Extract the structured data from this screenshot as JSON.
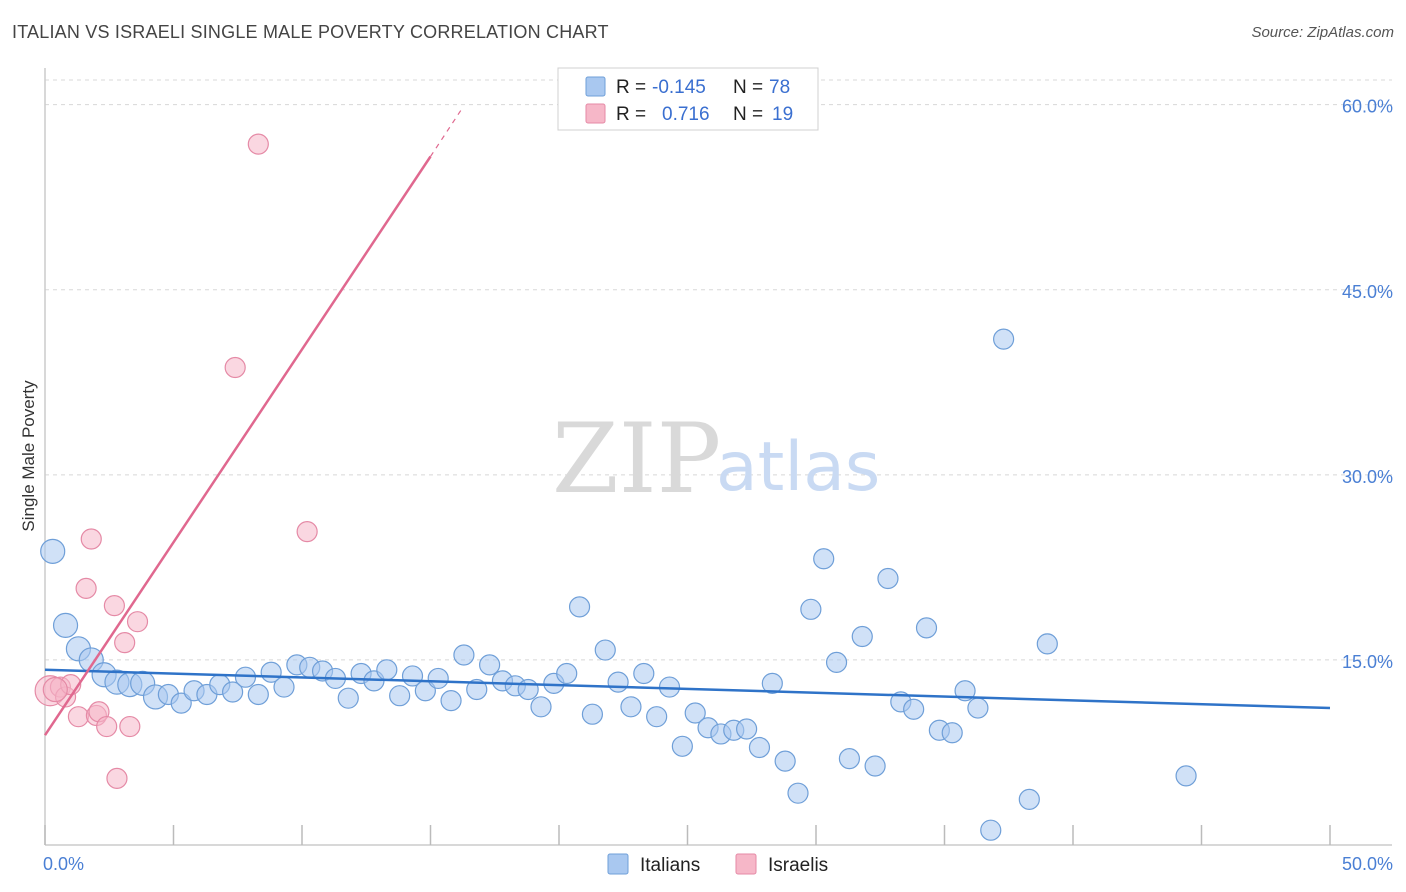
{
  "title": "ITALIAN VS ISRAELI SINGLE MALE POVERTY CORRELATION CHART",
  "source": "Source: ZipAtlas.com",
  "watermark": {
    "zip": "ZIP",
    "atlas": "atlas"
  },
  "colors": {
    "italians_fill": "#a9c8f0",
    "italians_stroke": "#6f9fd8",
    "italians_line": "#2f73c8",
    "israelis_fill": "#f6b7c8",
    "israelis_stroke": "#e58aa6",
    "israelis_line": "#e0688f",
    "tick_text": "#4a7fd4",
    "grid": "#d8d8d8"
  },
  "legend": {
    "rows": [
      {
        "r_label": "R =",
        "r_value": "-0.145",
        "n_label": "N =",
        "n_value": "78"
      },
      {
        "r_label": "R =",
        "r_value": "0.716",
        "n_label": "N =",
        "n_value": "19"
      }
    ]
  },
  "bottom_legend": [
    "Italians",
    "Israelis"
  ],
  "chart_data": {
    "type": "scatter",
    "title": "ITALIAN VS ISRAELI SINGLE MALE POVERTY CORRELATION CHART",
    "xlabel": "",
    "ylabel": "Single Male Poverty",
    "xlim": [
      0,
      50
    ],
    "ylim": [
      0,
      62
    ],
    "x_tick_labels": [
      "0.0%",
      "50.0%"
    ],
    "y_ticks": [
      15,
      30,
      45,
      60
    ],
    "y_tick_labels": [
      "15.0%",
      "30.0%",
      "45.0%",
      "60.0%"
    ],
    "grid": "horizontal dashed",
    "legend_placement": "top-center",
    "series": [
      {
        "name": "Italians",
        "r": -0.145,
        "n": 78,
        "trend": {
          "x": [
            0,
            50
          ],
          "y": [
            14.2,
            11.1
          ]
        },
        "points": [
          [
            0.3,
            23.8,
            1
          ],
          [
            0.8,
            17.8,
            1
          ],
          [
            1.3,
            15.9,
            1
          ],
          [
            1.8,
            15.0,
            1
          ],
          [
            2.3,
            13.8,
            1
          ],
          [
            2.8,
            13.2,
            1
          ],
          [
            3.3,
            13.0,
            1
          ],
          [
            3.8,
            13.1,
            1
          ],
          [
            4.3,
            12.0,
            1
          ],
          [
            4.8,
            12.2,
            0
          ],
          [
            5.3,
            11.5,
            0
          ],
          [
            5.8,
            12.5,
            0
          ],
          [
            6.3,
            12.2,
            0
          ],
          [
            6.8,
            13.0,
            0
          ],
          [
            7.3,
            12.4,
            0
          ],
          [
            7.8,
            13.6,
            0
          ],
          [
            8.3,
            12.2,
            0
          ],
          [
            8.8,
            14.0,
            0
          ],
          [
            9.3,
            12.8,
            0
          ],
          [
            9.8,
            14.6,
            0
          ],
          [
            10.3,
            14.4,
            0
          ],
          [
            10.8,
            14.1,
            0
          ],
          [
            11.3,
            13.5,
            0
          ],
          [
            11.8,
            11.9,
            0
          ],
          [
            12.3,
            13.9,
            0
          ],
          [
            12.8,
            13.3,
            0
          ],
          [
            13.3,
            14.2,
            0
          ],
          [
            13.8,
            12.1,
            0
          ],
          [
            14.3,
            13.7,
            0
          ],
          [
            14.8,
            12.5,
            0
          ],
          [
            15.3,
            13.5,
            0
          ],
          [
            15.8,
            11.7,
            0
          ],
          [
            16.3,
            15.4,
            0
          ],
          [
            16.8,
            12.6,
            0
          ],
          [
            17.3,
            14.6,
            0
          ],
          [
            17.8,
            13.3,
            0
          ],
          [
            18.3,
            12.9,
            0
          ],
          [
            18.8,
            12.6,
            0
          ],
          [
            19.3,
            11.2,
            0
          ],
          [
            19.8,
            13.1,
            0
          ],
          [
            20.3,
            13.9,
            0
          ],
          [
            20.8,
            19.3,
            0
          ],
          [
            21.3,
            10.6,
            0
          ],
          [
            21.8,
            15.8,
            0
          ],
          [
            22.3,
            13.2,
            0
          ],
          [
            22.8,
            11.2,
            0
          ],
          [
            23.3,
            13.9,
            0
          ],
          [
            23.8,
            10.4,
            0
          ],
          [
            24.3,
            12.8,
            0
          ],
          [
            24.8,
            8.0,
            0
          ],
          [
            25.3,
            10.7,
            0
          ],
          [
            25.8,
            9.5,
            0
          ],
          [
            26.3,
            9.0,
            0
          ],
          [
            26.8,
            9.3,
            0
          ],
          [
            27.3,
            9.4,
            0
          ],
          [
            27.8,
            7.9,
            0
          ],
          [
            28.3,
            13.1,
            0
          ],
          [
            28.8,
            6.8,
            0
          ],
          [
            29.3,
            4.2,
            0
          ],
          [
            29.8,
            19.1,
            0
          ],
          [
            30.3,
            23.2,
            0
          ],
          [
            30.8,
            14.8,
            0
          ],
          [
            31.3,
            7.0,
            0
          ],
          [
            31.8,
            16.9,
            0
          ],
          [
            32.3,
            6.4,
            0
          ],
          [
            32.8,
            21.6,
            0
          ],
          [
            33.3,
            11.6,
            0
          ],
          [
            33.8,
            11.0,
            0
          ],
          [
            34.3,
            17.6,
            0
          ],
          [
            34.8,
            9.3,
            0
          ],
          [
            35.3,
            9.1,
            0
          ],
          [
            35.8,
            12.5,
            0
          ],
          [
            36.3,
            11.1,
            0
          ],
          [
            36.8,
            1.2,
            0
          ],
          [
            37.3,
            41.0,
            0
          ],
          [
            38.3,
            3.7,
            0
          ],
          [
            39.0,
            16.3,
            0
          ],
          [
            44.4,
            5.6,
            0
          ]
        ]
      },
      {
        "name": "Israelis",
        "r": 0.716,
        "n": 19,
        "trend": {
          "x": [
            0,
            15
          ],
          "y": [
            8.9,
            55.8
          ]
        },
        "trend_dashed": {
          "x": [
            15,
            16.2
          ],
          "y": [
            55.8,
            59.6
          ]
        },
        "points": [
          [
            0.2,
            12.5,
            2
          ],
          [
            0.6,
            12.8,
            0
          ],
          [
            0.8,
            12.0,
            0
          ],
          [
            1.0,
            13.0,
            0
          ],
          [
            1.3,
            10.4,
            0
          ],
          [
            1.6,
            20.8,
            0
          ],
          [
            1.8,
            24.8,
            0
          ],
          [
            2.0,
            10.5,
            0
          ],
          [
            2.1,
            10.8,
            0
          ],
          [
            2.4,
            9.6,
            0
          ],
          [
            2.7,
            19.4,
            0
          ],
          [
            3.1,
            16.4,
            0
          ],
          [
            3.3,
            9.6,
            0
          ],
          [
            3.6,
            18.1,
            0
          ],
          [
            2.8,
            5.4,
            0
          ],
          [
            7.4,
            38.7,
            0
          ],
          [
            8.3,
            56.8,
            0
          ],
          [
            10.2,
            25.4,
            0
          ],
          [
            0.4,
            12.6,
            1
          ]
        ]
      }
    ]
  }
}
